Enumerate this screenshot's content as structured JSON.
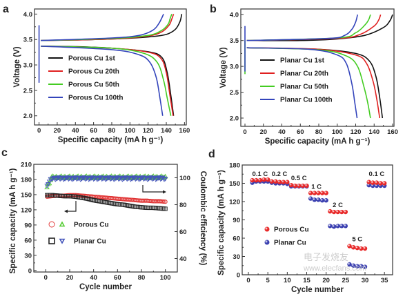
{
  "chart_data": [
    {
      "panel": "a",
      "type": "line",
      "xlabel": "Specific capacity (mA h g⁻¹)",
      "ylabel": "Voltage (V)",
      "xlim": [
        -5,
        162
      ],
      "ylim": [
        1.82,
        4.1
      ],
      "xticks": [
        0,
        20,
        40,
        60,
        80,
        100,
        120,
        140,
        160
      ],
      "yticks": [
        2.0,
        2.5,
        3.0,
        3.5,
        4.0
      ],
      "ytick_labels": [
        "2.0",
        "2.5",
        "3.0",
        "3.5",
        "4.0"
      ],
      "legend": "center-left",
      "series": [
        {
          "name": "Porous Cu  1st",
          "color": "#111111",
          "charge": [
            [
              2,
              3.48
            ],
            [
              40,
              3.49
            ],
            [
              80,
              3.51
            ],
            [
              120,
              3.55
            ],
            [
              140,
              3.6
            ],
            [
              150,
              3.7
            ],
            [
              155,
              3.85
            ],
            [
              157,
              4.0
            ]
          ],
          "discharge": [
            [
              2,
              3.37
            ],
            [
              40,
              3.36
            ],
            [
              80,
              3.33
            ],
            [
              120,
              3.26
            ],
            [
              135,
              3.15
            ],
            [
              141,
              2.85
            ],
            [
              145,
              2.4
            ],
            [
              148,
              2.0
            ]
          ]
        },
        {
          "name": "Porous Cu  20th",
          "color": "#e02020",
          "charge": [
            [
              2,
              3.48
            ],
            [
              80,
              3.51
            ],
            [
              120,
              3.57
            ],
            [
              135,
              3.65
            ],
            [
              143,
              3.78
            ],
            [
              146,
              3.9
            ],
            [
              148,
              4.0
            ]
          ],
          "discharge": [
            [
              2,
              3.37
            ],
            [
              80,
              3.33
            ],
            [
              120,
              3.25
            ],
            [
              134,
              3.13
            ],
            [
              140,
              2.85
            ],
            [
              144,
              2.4
            ],
            [
              147.5,
              2.0
            ]
          ]
        },
        {
          "name": "Porous Cu  50th",
          "color": "#44cc22",
          "charge": [
            [
              2,
              3.48
            ],
            [
              80,
              3.52
            ],
            [
              120,
              3.58
            ],
            [
              135,
              3.68
            ],
            [
              142,
              3.8
            ],
            [
              144,
              3.9
            ],
            [
              146,
              4.0
            ]
          ],
          "discharge": [
            [
              2,
              3.37
            ],
            [
              80,
              3.33
            ],
            [
              115,
              3.23
            ],
            [
              130,
              3.05
            ],
            [
              137,
              2.7
            ],
            [
              141,
              2.35
            ],
            [
              145,
              2.0
            ]
          ]
        },
        {
          "name": "Porous Cu  100th",
          "color": "#3344bb",
          "spike": [
            [
              0,
              2.65
            ],
            [
              0,
              3.78
            ]
          ],
          "charge": [
            [
              2,
              3.48
            ],
            [
              80,
              3.53
            ],
            [
              110,
              3.58
            ],
            [
              125,
              3.68
            ],
            [
              132,
              3.82
            ],
            [
              137,
              4.0
            ]
          ],
          "discharge": [
            [
              2,
              3.37
            ],
            [
              80,
              3.3
            ],
            [
              110,
              3.2
            ],
            [
              122,
              3.05
            ],
            [
              129,
              2.75
            ],
            [
              133,
              2.35
            ],
            [
              136,
              2.0
            ]
          ]
        }
      ]
    },
    {
      "panel": "b",
      "type": "line",
      "xlabel": "Specific capacity (mA h g⁻¹)",
      "ylabel": "Voltage (V)",
      "xlim": [
        -4.5,
        161.5
      ],
      "ylim": [
        1.84,
        4.11
      ],
      "xticks": [
        0,
        20,
        40,
        60,
        80,
        100,
        120,
        140,
        160
      ],
      "yticks": [
        2.0,
        2.5,
        3.0,
        3.5,
        4.0
      ],
      "ytick_labels": [
        "2.0",
        "2.5",
        "3.0",
        "3.5",
        "4.0"
      ],
      "legend": "center-left",
      "series": [
        {
          "name": "Planar Cu  1st",
          "color": "#111111",
          "charge": [
            [
              2,
              3.5
            ],
            [
              60,
              3.5
            ],
            [
              100,
              3.53
            ],
            [
              130,
              3.6
            ],
            [
              150,
              3.75
            ],
            [
              157,
              3.88
            ],
            [
              160,
              4.0
            ]
          ],
          "discharge": [
            [
              2,
              3.36
            ],
            [
              80,
              3.33
            ],
            [
              120,
              3.25
            ],
            [
              135,
              3.1
            ],
            [
              142,
              2.8
            ],
            [
              146,
              2.4
            ],
            [
              149,
              2.0
            ]
          ]
        },
        {
          "name": "Planar Cu  20th",
          "color": "#e02020",
          "charge": [
            [
              2,
              3.5
            ],
            [
              100,
              3.54
            ],
            [
              125,
              3.62
            ],
            [
              140,
              3.78
            ],
            [
              145,
              3.9
            ],
            [
              147,
              4.0
            ]
          ],
          "discharge": [
            [
              2,
              3.36
            ],
            [
              80,
              3.33
            ],
            [
              120,
              3.22
            ],
            [
              132,
              3.05
            ],
            [
              139,
              2.7
            ],
            [
              143,
              2.35
            ],
            [
              146,
              2.0
            ]
          ]
        },
        {
          "name": "Planar Cu  50th",
          "color": "#44cc22",
          "spike": [
            [
              0,
              2.85
            ],
            [
              0,
              3.5
            ]
          ],
          "charge": [
            [
              2,
              3.5
            ],
            [
              100,
              3.55
            ],
            [
              120,
              3.65
            ],
            [
              130,
              3.8
            ],
            [
              134,
              3.9
            ],
            [
              136,
              4.0
            ]
          ],
          "discharge": [
            [
              2,
              3.36
            ],
            [
              80,
              3.32
            ],
            [
              110,
              3.2
            ],
            [
              122,
              3.0
            ],
            [
              129,
              2.6
            ],
            [
              133,
              2.3
            ],
            [
              136,
              2.0
            ]
          ]
        },
        {
          "name": "Planar Cu  100th",
          "color": "#3344bb",
          "spike": [
            [
              0,
              2.9
            ],
            [
              0,
              3.78
            ]
          ],
          "charge": [
            [
              2,
              3.5
            ],
            [
              90,
              3.54
            ],
            [
              108,
              3.6
            ],
            [
              116,
              3.72
            ],
            [
              120,
              3.86
            ],
            [
              122,
              4.0
            ]
          ],
          "discharge": [
            [
              2,
              3.36
            ],
            [
              70,
              3.33
            ],
            [
              100,
              3.22
            ],
            [
              110,
              3.05
            ],
            [
              116,
              2.65
            ],
            [
              119,
              2.3
            ],
            [
              121.5,
              2.0
            ]
          ]
        }
      ]
    },
    {
      "panel": "c",
      "type": "scatter",
      "xlabel": "Cycle number",
      "ylabel": "Specific capacity (mA h g⁻¹)",
      "ylabel_right": "Coulombic efficiency (%)",
      "xlim": [
        -10,
        110
      ],
      "ylim": [
        -3,
        210
      ],
      "ylim_right": [
        30,
        110
      ],
      "xticks": [
        0,
        20,
        40,
        60,
        80,
        100
      ],
      "yticks": [
        0,
        30,
        60,
        90,
        120,
        150,
        180,
        210
      ],
      "yticks_right": [
        40,
        60,
        80,
        100
      ],
      "legend": "center-left",
      "cycles": [
        1,
        5,
        10,
        15,
        20,
        25,
        30,
        35,
        40,
        45,
        50,
        55,
        60,
        65,
        70,
        75,
        80,
        85,
        90,
        95,
        100
      ],
      "series": [
        {
          "name": "Porous Cu",
          "axis": "left",
          "marker": "circle",
          "color": "#e03030",
          "values": [
            146,
            147,
            148,
            148,
            149,
            149,
            148,
            147,
            146,
            145,
            144,
            143,
            142,
            141,
            140,
            139,
            138,
            138,
            137,
            137,
            136
          ]
        },
        {
          "name": "Planar Cu",
          "axis": "left",
          "marker": "square",
          "color": "#222222",
          "values": [
            149,
            149,
            148,
            147,
            147,
            146,
            144,
            142,
            139,
            137,
            135,
            133,
            131,
            130,
            128,
            126,
            125,
            124,
            124,
            123,
            122
          ]
        },
        {
          "name": "Porous Cu",
          "axis": "right",
          "marker": "triangle-up",
          "color": "#55cc33",
          "values": [
            93,
            100.5,
            100.5,
            100.5,
            100.5,
            100.5,
            100.5,
            100.5,
            100.5,
            100.5,
            100.5,
            100.5,
            100.5,
            100.5,
            100.5,
            100.5,
            100.5,
            100.5,
            100.5,
            100.5,
            100.5
          ]
        },
        {
          "name": "Planar Cu",
          "axis": "right",
          "marker": "triangle-down",
          "color": "#4455bb",
          "values": [
            94,
            99.5,
            99.5,
            99.5,
            99.5,
            99.5,
            99.5,
            99.5,
            99.5,
            99.5,
            99.5,
            99.5,
            99.5,
            99.5,
            99.5,
            99.5,
            99.5,
            99.5,
            99.5,
            99.5,
            99.5
          ]
        }
      ]
    },
    {
      "panel": "d",
      "type": "scatter",
      "xlabel": "Cycle number",
      "ylabel": "Specific capacity (mA h g⁻¹)",
      "xlim": [
        -1.6,
        37.1
      ],
      "ylim": [
        0,
        180
      ],
      "xticks": [
        0,
        5,
        10,
        15,
        20,
        25,
        30,
        35
      ],
      "yticks": [
        0,
        30,
        60,
        90,
        120,
        150,
        180
      ],
      "legend": "center-left",
      "cycles": [
        1,
        2,
        3,
        4,
        5,
        6,
        7,
        8,
        9,
        10,
        11,
        12,
        13,
        14,
        15,
        16,
        17,
        18,
        19,
        20,
        21,
        22,
        23,
        24,
        25,
        26,
        27,
        28,
        29,
        30,
        31,
        32,
        33,
        34,
        35
      ],
      "annotations": [
        "0.1 C",
        "0.2 C",
        "0.5 C",
        "1 C",
        "2 C",
        "5 C",
        "0.1 C"
      ],
      "series": [
        {
          "name": "Porous Cu",
          "color": "#e82828",
          "values": [
            155,
            155,
            155,
            156,
            156,
            153,
            153,
            152,
            152,
            152,
            147,
            146,
            146,
            146,
            146,
            134,
            134,
            134,
            134,
            134,
            104,
            103,
            103,
            103,
            103,
            47,
            45,
            44,
            43,
            43,
            152,
            151,
            151,
            150,
            150
          ]
        },
        {
          "name": "Planar Cu",
          "color": "#3a3fb0",
          "values": [
            151,
            153,
            153,
            153,
            153,
            151,
            150,
            150,
            150,
            149,
            145,
            145,
            145,
            145,
            145,
            125,
            123,
            123,
            122,
            122,
            80,
            79,
            80,
            80,
            80,
            17,
            15,
            14,
            14,
            13,
            147,
            146,
            146,
            146,
            146
          ]
        }
      ]
    }
  ],
  "panel_labels": [
    "a",
    "b",
    "c",
    "d"
  ],
  "watermark": {
    "text": "电子发烧友",
    "url": "www.elecfans.com"
  }
}
